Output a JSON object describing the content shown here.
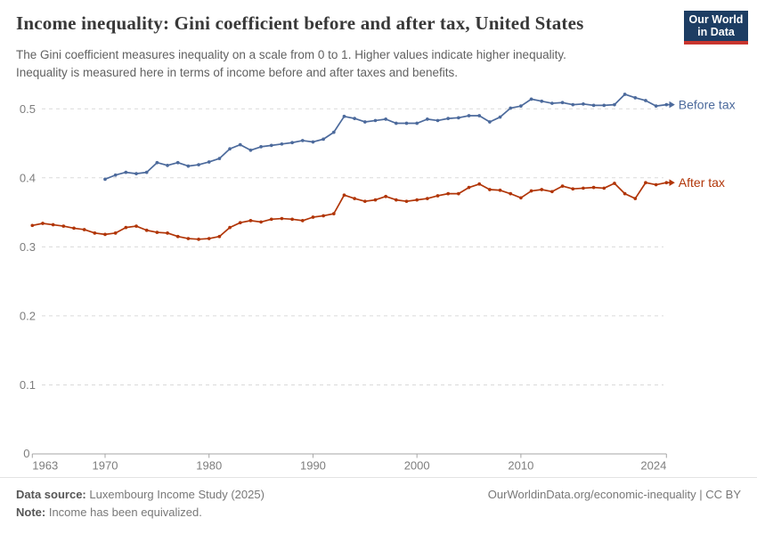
{
  "header": {
    "title": "Income inequality: Gini coefficient before and after tax, United States",
    "subtitle_line1": "The Gini coefficient measures inequality on a scale from 0 to 1. Higher values indicate higher inequality.",
    "subtitle_line2": "Inequality is measured here in terms of income before and after taxes and benefits.",
    "logo": {
      "line1": "Our World",
      "line2": "in Data",
      "bg_color": "#1d3d63",
      "bar_color": "#c8352e"
    }
  },
  "chart_data": {
    "type": "line",
    "title": "Income inequality: Gini coefficient before and after tax, United States",
    "xlabel": "",
    "ylabel": "",
    "xlim": [
      1963,
      2024
    ],
    "ylim": [
      0,
      0.55
    ],
    "x_ticks": [
      1963,
      1970,
      1980,
      1990,
      2000,
      2010,
      2024
    ],
    "y_ticks": [
      0,
      0.1,
      0.2,
      0.3,
      0.4,
      0.5
    ],
    "grid": "horizontal-dashed",
    "legend_position": "end-of-line-labels",
    "colors": {
      "grid": "#dadada",
      "axis": "#a6a6a6",
      "tick_text": "#7e7e7e"
    },
    "series": [
      {
        "name": "Before tax",
        "color": "#4C6A9C",
        "years": [
          1970,
          1971,
          1972,
          1973,
          1974,
          1975,
          1976,
          1977,
          1978,
          1979,
          1980,
          1981,
          1982,
          1983,
          1984,
          1985,
          1986,
          1987,
          1988,
          1989,
          1990,
          1991,
          1992,
          1993,
          1994,
          1995,
          1996,
          1997,
          1998,
          1999,
          2000,
          2001,
          2002,
          2003,
          2004,
          2005,
          2006,
          2007,
          2008,
          2009,
          2010,
          2011,
          2012,
          2013,
          2014,
          2015,
          2016,
          2017,
          2018,
          2019,
          2020,
          2021,
          2022,
          2023,
          2024
        ],
        "values": [
          0.398,
          0.404,
          0.408,
          0.406,
          0.408,
          0.422,
          0.418,
          0.422,
          0.417,
          0.419,
          0.423,
          0.428,
          0.442,
          0.448,
          0.44,
          0.445,
          0.447,
          0.449,
          0.451,
          0.454,
          0.452,
          0.456,
          0.466,
          0.489,
          0.486,
          0.481,
          0.483,
          0.485,
          0.479,
          0.479,
          0.479,
          0.485,
          0.483,
          0.486,
          0.487,
          0.49,
          0.49,
          0.481,
          0.488,
          0.501,
          0.504,
          0.514,
          0.511,
          0.508,
          0.509,
          0.506,
          0.507,
          0.505,
          0.505,
          0.506,
          0.521,
          0.516,
          0.512,
          0.504,
          0.506
        ]
      },
      {
        "name": "After tax",
        "color": "#B13507",
        "years": [
          1963,
          1964,
          1965,
          1966,
          1967,
          1968,
          1969,
          1970,
          1971,
          1972,
          1973,
          1974,
          1975,
          1976,
          1977,
          1978,
          1979,
          1980,
          1981,
          1982,
          1983,
          1984,
          1985,
          1986,
          1987,
          1988,
          1989,
          1990,
          1991,
          1992,
          1993,
          1994,
          1995,
          1996,
          1997,
          1998,
          1999,
          2000,
          2001,
          2002,
          2003,
          2004,
          2005,
          2006,
          2007,
          2008,
          2009,
          2010,
          2011,
          2012,
          2013,
          2014,
          2015,
          2016,
          2017,
          2018,
          2019,
          2020,
          2021,
          2022,
          2023,
          2024
        ],
        "values": [
          0.331,
          0.334,
          0.332,
          0.33,
          0.327,
          0.325,
          0.32,
          0.318,
          0.32,
          0.328,
          0.33,
          0.324,
          0.321,
          0.32,
          0.315,
          0.312,
          0.311,
          0.312,
          0.315,
          0.328,
          0.335,
          0.338,
          0.336,
          0.34,
          0.341,
          0.34,
          0.338,
          0.343,
          0.345,
          0.348,
          0.375,
          0.37,
          0.366,
          0.368,
          0.373,
          0.368,
          0.366,
          0.368,
          0.37,
          0.374,
          0.377,
          0.377,
          0.386,
          0.391,
          0.383,
          0.382,
          0.377,
          0.371,
          0.381,
          0.383,
          0.38,
          0.388,
          0.384,
          0.385,
          0.386,
          0.385,
          0.392,
          0.377,
          0.37,
          0.393,
          0.39,
          0.393
        ]
      }
    ]
  },
  "footer": {
    "source_label": "Data source:",
    "source_text": "Luxembourg Income Study (2025)",
    "note_label": "Note:",
    "note_text": "Income has been equivalized.",
    "link_text": "OurWorldinData.org/economic-inequality | CC BY"
  }
}
